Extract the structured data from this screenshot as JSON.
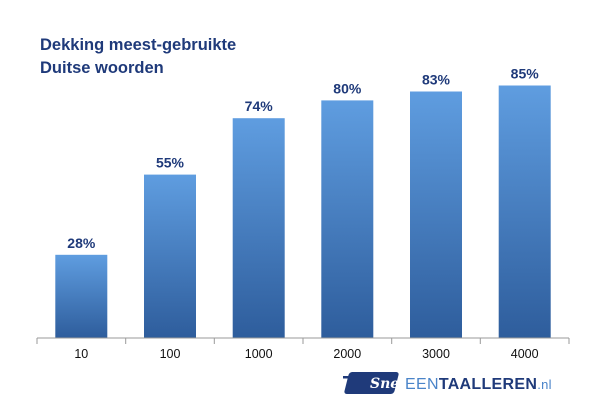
{
  "chart_data": {
    "type": "bar",
    "title_lines": [
      "Dekking meest-gebruikte",
      "Duitse woorden"
    ],
    "categories": [
      "10",
      "100",
      "1000",
      "2000",
      "3000",
      "4000"
    ],
    "values": [
      28,
      55,
      74,
      80,
      83,
      85
    ],
    "value_labels": [
      "28%",
      "55%",
      "74%",
      "80%",
      "83%",
      "85%"
    ],
    "unit": "%",
    "ylim": [
      0,
      100
    ],
    "grid": false,
    "legend": "none",
    "bar_color_top": "#5f9de0",
    "bar_color_bottom": "#2e5d9c"
  },
  "logo": {
    "snel": "Snel",
    "een": "EEN",
    "taal": "TAAL",
    "leren": "LEREN",
    "tld": ".nl",
    "colors": {
      "navy": "#1f3a7a",
      "blue": "#4a84c9"
    }
  }
}
